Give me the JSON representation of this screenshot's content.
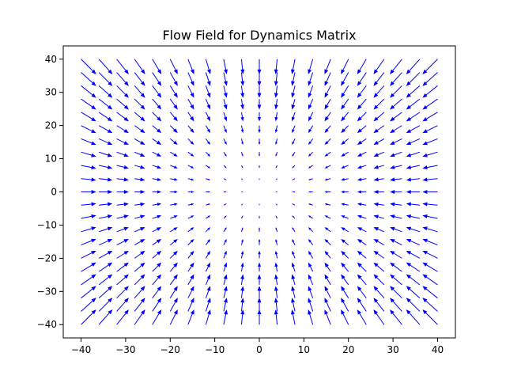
{
  "chart_data": {
    "type": "quiver",
    "title": "Flow Field for Dynamics Matrix",
    "xlabel": "",
    "ylabel": "",
    "xlim": [
      -44,
      44
    ],
    "ylim": [
      -44,
      44
    ],
    "x_ticks": [
      -40,
      -30,
      -20,
      -10,
      0,
      10,
      20,
      30,
      40
    ],
    "y_ticks": [
      -40,
      -30,
      -20,
      -10,
      0,
      10,
      20,
      30,
      40
    ],
    "x_tick_labels": [
      "−40",
      "−30",
      "−20",
      "−10",
      "0",
      "10",
      "20",
      "30",
      "40"
    ],
    "y_tick_labels": [
      "−40",
      "−30",
      "−20",
      "−10",
      "0",
      "10",
      "20",
      "30",
      "40"
    ],
    "grid": false,
    "grid_x": {
      "start": -40,
      "stop": 40,
      "count": 21
    },
    "grid_y": {
      "start": -40,
      "stop": 40,
      "count": 21
    },
    "dynamics_matrix": [
      [
        -1,
        0
      ],
      [
        0,
        -1
      ]
    ],
    "arrow_color": "#0000ff"
  }
}
